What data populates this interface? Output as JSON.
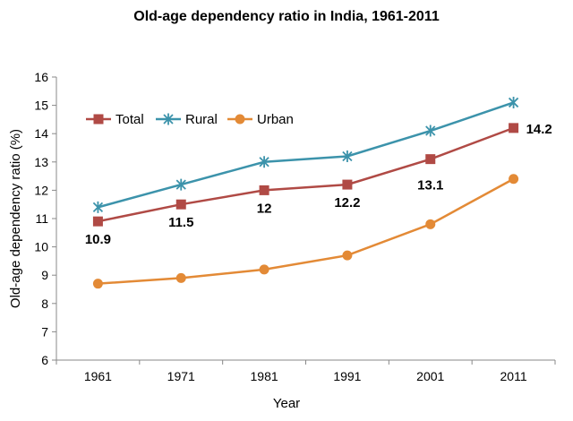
{
  "chart_data": {
    "type": "line",
    "title": "Old-age dependency ratio in India, 1961-2011",
    "xlabel": "Year",
    "ylabel": "Old-age dependency ratio (%)",
    "categories": [
      "1961",
      "1971",
      "1981",
      "1991",
      "2001",
      "2011"
    ],
    "yticks": [
      "6",
      "7",
      "8",
      "9",
      "10",
      "11",
      "12",
      "13",
      "14",
      "15",
      "16"
    ],
    "ylim": [
      6,
      16
    ],
    "grid": false,
    "legend_position": "top-left",
    "series": [
      {
        "name": "Total",
        "values": [
          10.9,
          11.5,
          12.0,
          12.2,
          13.1,
          14.2
        ],
        "data_labels": [
          "10.9",
          "11.5",
          "12",
          "12.2",
          "13.1",
          "14.2"
        ],
        "color": "#B04A45",
        "marker": "square"
      },
      {
        "name": "Rural",
        "values": [
          11.4,
          12.2,
          13.0,
          13.2,
          14.1,
          15.1
        ],
        "color": "#3C93AB",
        "marker": "star"
      },
      {
        "name": "Urban",
        "values": [
          8.7,
          8.9,
          9.2,
          9.7,
          10.8,
          12.4
        ],
        "color": "#E38A36",
        "marker": "circle"
      }
    ]
  }
}
